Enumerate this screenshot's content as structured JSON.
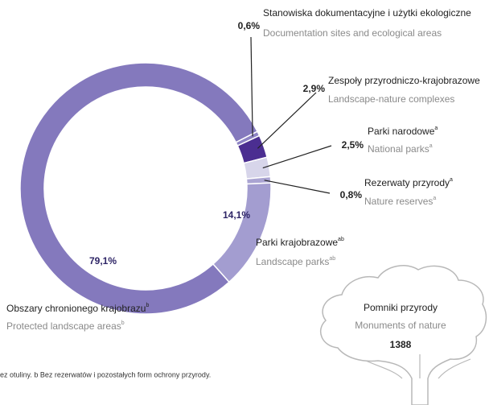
{
  "chart_data": {
    "type": "pie",
    "categories": [
      "Stanowiska dokumentacyjne i użytki ekologiczne",
      "Zespoły przyrodniczo-krajobrazowe",
      "Parki narodowe",
      "Rezerwaty przyrody",
      "Parki krajobrazowe",
      "Obszary chronionego krajobrazu"
    ],
    "categories_en": [
      "Documentation sites and ecological areas",
      "Landscape-nature complexes",
      "National parks",
      "Nature reserves",
      "Landscape parks",
      "Protected landscape areas"
    ],
    "notes": [
      null,
      null,
      "a",
      "a",
      "ab",
      "b"
    ],
    "values": [
      0.6,
      2.9,
      2.5,
      0.8,
      14.1,
      79.1
    ],
    "value_labels": [
      "0,6%",
      "2,9%",
      "2,5%",
      "0,8%",
      "14,1%",
      "79,1%"
    ],
    "colors": [
      "#8d83c4",
      "#4b2e91",
      "#d7d5ea",
      "#aaa4d2",
      "#a39dd0",
      "#8479bd"
    ]
  },
  "monuments": {
    "title": "Pomniki przyrody",
    "title_en": "Monuments of nature",
    "value": 1388
  },
  "footnote": "ez otuliny. b Bez rezerwatów i pozostałych form ochrony przyrody."
}
